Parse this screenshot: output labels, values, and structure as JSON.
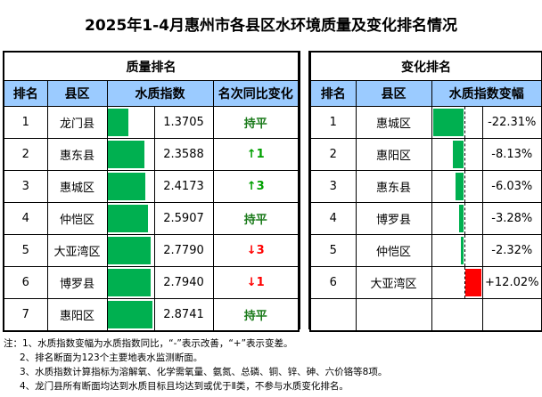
{
  "title": "2025年1-4月惠州市各县区水环境质量及变化排名情况",
  "quality": {
    "caption": "质量排名",
    "headers": [
      "排名",
      "县区",
      "水质指数",
      "名次同比变化"
    ],
    "rows": [
      {
        "rank": "1",
        "county": "龙门县",
        "index": 1.3705,
        "index_text": "1.3705",
        "change": "持平",
        "dir": "flat"
      },
      {
        "rank": "2",
        "county": "惠东县",
        "index": 2.3588,
        "index_text": "2.3588",
        "change": "↑1",
        "dir": "up"
      },
      {
        "rank": "3",
        "county": "惠城区",
        "index": 2.4173,
        "index_text": "2.4173",
        "change": "↑3",
        "dir": "up"
      },
      {
        "rank": "4",
        "county": "仲恺区",
        "index": 2.5907,
        "index_text": "2.5907",
        "change": "持平",
        "dir": "flat"
      },
      {
        "rank": "5",
        "county": "大亚湾区",
        "index": 2.779,
        "index_text": "2.7790",
        "change": "↓3",
        "dir": "down"
      },
      {
        "rank": "6",
        "county": "博罗县",
        "index": 2.794,
        "index_text": "2.7940",
        "change": "↓1",
        "dir": "down"
      },
      {
        "rank": "7",
        "county": "惠阳区",
        "index": 2.8741,
        "index_text": "2.8741",
        "change": "持平",
        "dir": "flat"
      }
    ]
  },
  "change": {
    "caption": "变化排名",
    "headers": [
      "排名",
      "县区",
      "水质指数变幅"
    ],
    "rows": [
      {
        "rank": "1",
        "county": "惠城区",
        "pct": -22.31,
        "pct_text": "-22.31%"
      },
      {
        "rank": "2",
        "county": "惠阳区",
        "pct": -8.13,
        "pct_text": "-8.13%"
      },
      {
        "rank": "3",
        "county": "惠东县",
        "pct": -6.03,
        "pct_text": "-6.03%"
      },
      {
        "rank": "4",
        "county": "博罗县",
        "pct": -3.28,
        "pct_text": "-3.28%"
      },
      {
        "rank": "5",
        "county": "仲恺区",
        "pct": -2.32,
        "pct_text": "-2.32%"
      },
      {
        "rank": "6",
        "county": "大亚湾区",
        "pct": 12.02,
        "pct_text": "+12.02%"
      }
    ]
  },
  "colors": {
    "good": "#00b050",
    "bad": "#ff0000",
    "header": "#9bcbff"
  },
  "notes": [
    "注：1、水质指数变幅为水质指数同比，“-”表示改善，“+”表示变差。",
    "2、排名断面为123个主要地表水监测断面。",
    "3、水质指数计算指标为溶解氧、化学需氧量、氨氮、总磷、铜、锌、砷、六价铬等8项。",
    "4、龙门县所有断面均达到水质目标且均达到或优于Ⅱ类，不参与水质变化排名。"
  ]
}
